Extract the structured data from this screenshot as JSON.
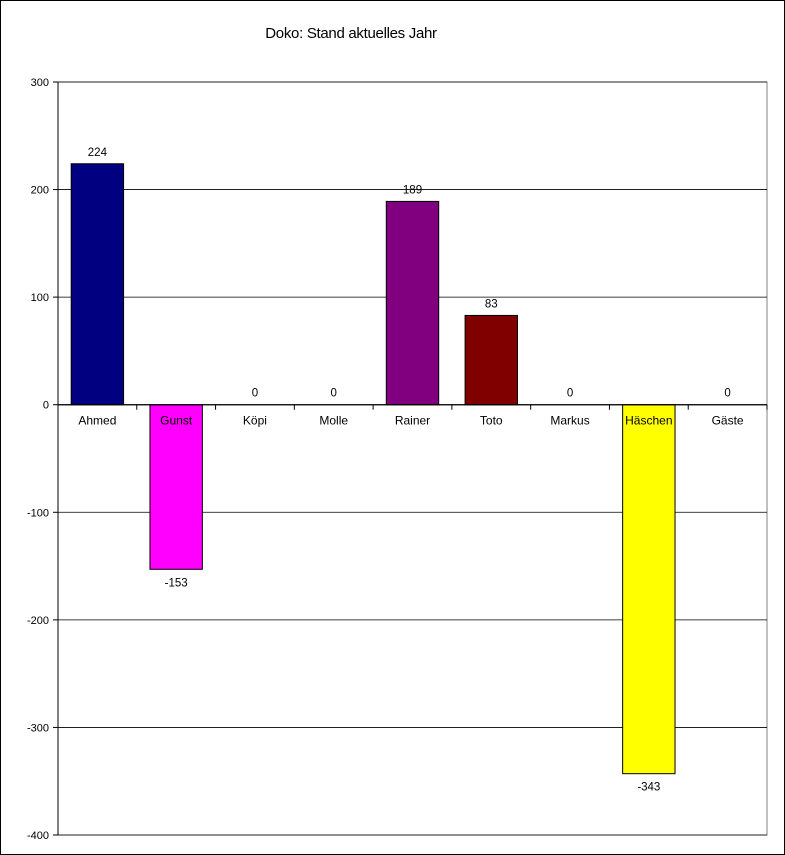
{
  "chart_data": {
    "type": "bar",
    "title": "Doko: Stand aktuelles Jahr",
    "categories": [
      "Ahmed",
      "Gunst",
      "Köpi",
      "Molle",
      "Rainer",
      "Toto",
      "Markus",
      "Häschen",
      "Gäste"
    ],
    "values": [
      224,
      -153,
      0,
      0,
      189,
      83,
      0,
      -343,
      0
    ],
    "colors": [
      "#000080",
      "#FF00FF",
      "#000080",
      "#000080",
      "#800080",
      "#800000",
      "#000080",
      "#FFFF00",
      "#000080"
    ],
    "ylim": [
      -400,
      300
    ],
    "yticks": [
      "-400",
      "-300",
      "-200",
      "-100",
      "0",
      "100",
      "200",
      "300"
    ],
    "xlabel": "",
    "ylabel": "",
    "grid": true,
    "legend": "none"
  }
}
